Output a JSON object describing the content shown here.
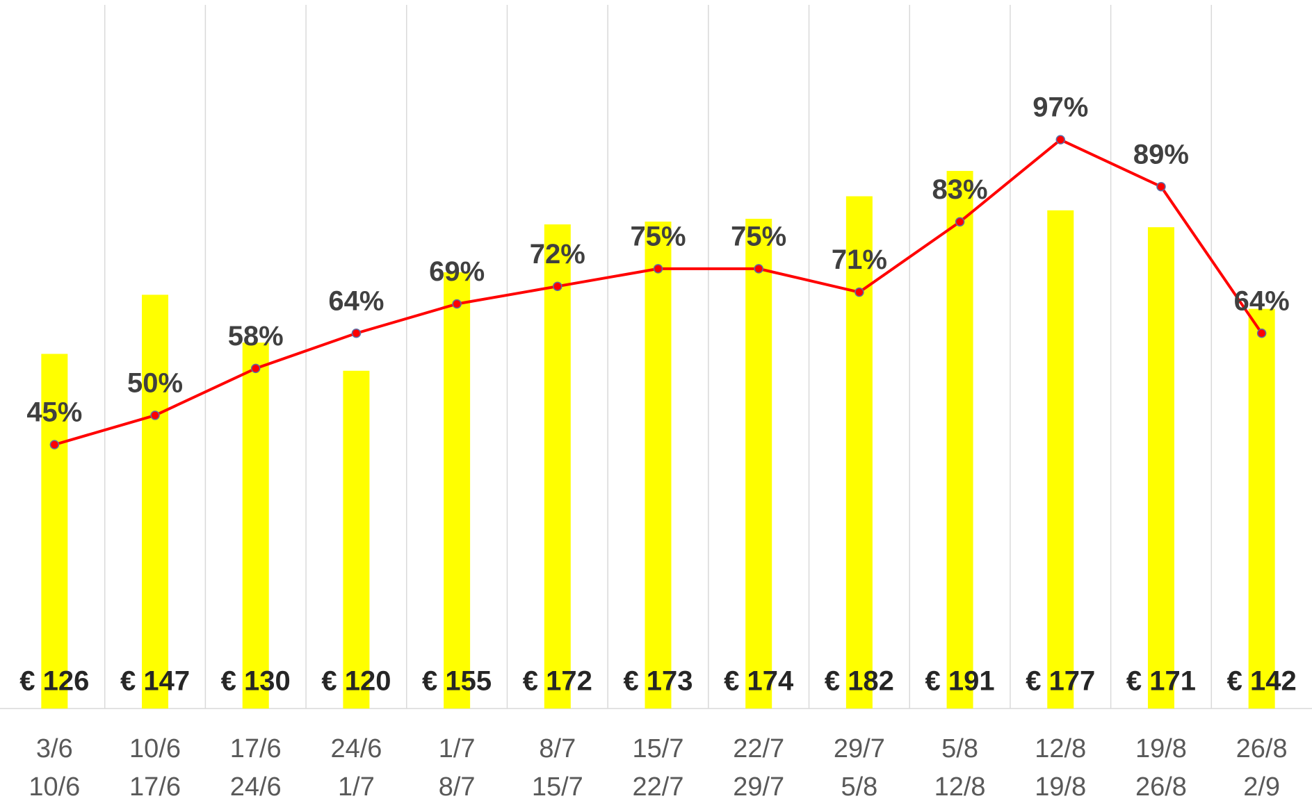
{
  "chart_data": {
    "type": "combo",
    "categories": [
      [
        "3/6",
        "10/6"
      ],
      [
        "10/6",
        "17/6"
      ],
      [
        "17/6",
        "24/6"
      ],
      [
        "24/6",
        "1/7"
      ],
      [
        "1/7",
        "8/7"
      ],
      [
        "8/7",
        "15/7"
      ],
      [
        "15/7",
        "22/7"
      ],
      [
        "22/7",
        "29/7"
      ],
      [
        "29/7",
        "5/8"
      ],
      [
        "5/8",
        "12/8"
      ],
      [
        "12/8",
        "19/8"
      ],
      [
        "19/8",
        "26/8"
      ],
      [
        "26/8",
        "2/9"
      ]
    ],
    "series": [
      {
        "type": "bar",
        "color": "#ffff00",
        "axis": "y2",
        "values": [
          126,
          147,
          130,
          120,
          155,
          172,
          173,
          174,
          182,
          191,
          177,
          171,
          142
        ],
        "value_labels": [
          "€ 126",
          "€ 147",
          "€ 130",
          "€ 120",
          "€ 155",
          "€ 172",
          "€ 173",
          "€ 174",
          "€ 182",
          "€ 191",
          "€ 177",
          "€ 171",
          "€ 142"
        ]
      },
      {
        "type": "line",
        "color": "#ff0000",
        "values": [
          45,
          50,
          58,
          64,
          69,
          72,
          75,
          75,
          71,
          83,
          97,
          89,
          64
        ],
        "value_labels": [
          "45%",
          "50%",
          "58%",
          "64%",
          "69%",
          "72%",
          "75%",
          "75%",
          "71%",
          "83%",
          "97%",
          "89%",
          "64%"
        ]
      }
    ],
    "ylim": [
      0,
      120
    ],
    "y2lim": [
      0,
      250
    ],
    "grid": true
  }
}
